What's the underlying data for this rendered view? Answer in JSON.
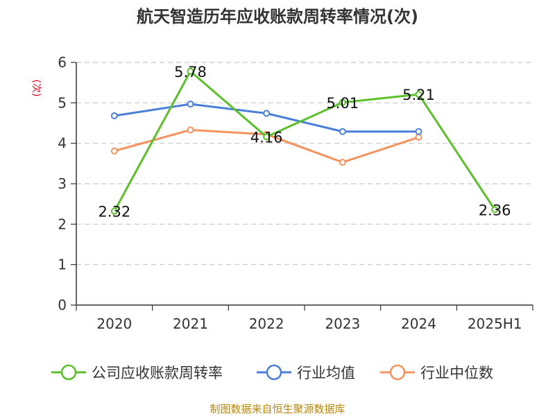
{
  "chart_data": {
    "type": "line",
    "title": "航天智造历年应收账款周转率情况(次)",
    "ylabel": "(次)",
    "xlabel": "",
    "categories": [
      "2020",
      "2021",
      "2022",
      "2023",
      "2024",
      "2025H1"
    ],
    "ylim": [
      0,
      6
    ],
    "yticks": [
      "0",
      "1",
      "2",
      "3",
      "4",
      "5",
      "6"
    ],
    "grid": true,
    "legend_position": "bottom",
    "series": [
      {
        "name": "公司应收账款周转率",
        "color": "#5bbf2a",
        "values": [
          2.32,
          5.78,
          4.16,
          5.01,
          5.21,
          2.36
        ],
        "labels": [
          "2.32",
          "5.78",
          "4.16",
          "5.01",
          "5.21",
          "2.36"
        ]
      },
      {
        "name": "行业均值",
        "color": "#4a7fd9",
        "values": [
          4.68,
          4.97,
          4.74,
          4.29,
          4.29,
          null
        ]
      },
      {
        "name": "行业中位数",
        "color": "#f5925e",
        "values": [
          3.81,
          4.33,
          4.22,
          3.53,
          4.15,
          null
        ]
      }
    ],
    "source": "制图数据来自恒生聚源数据库"
  }
}
